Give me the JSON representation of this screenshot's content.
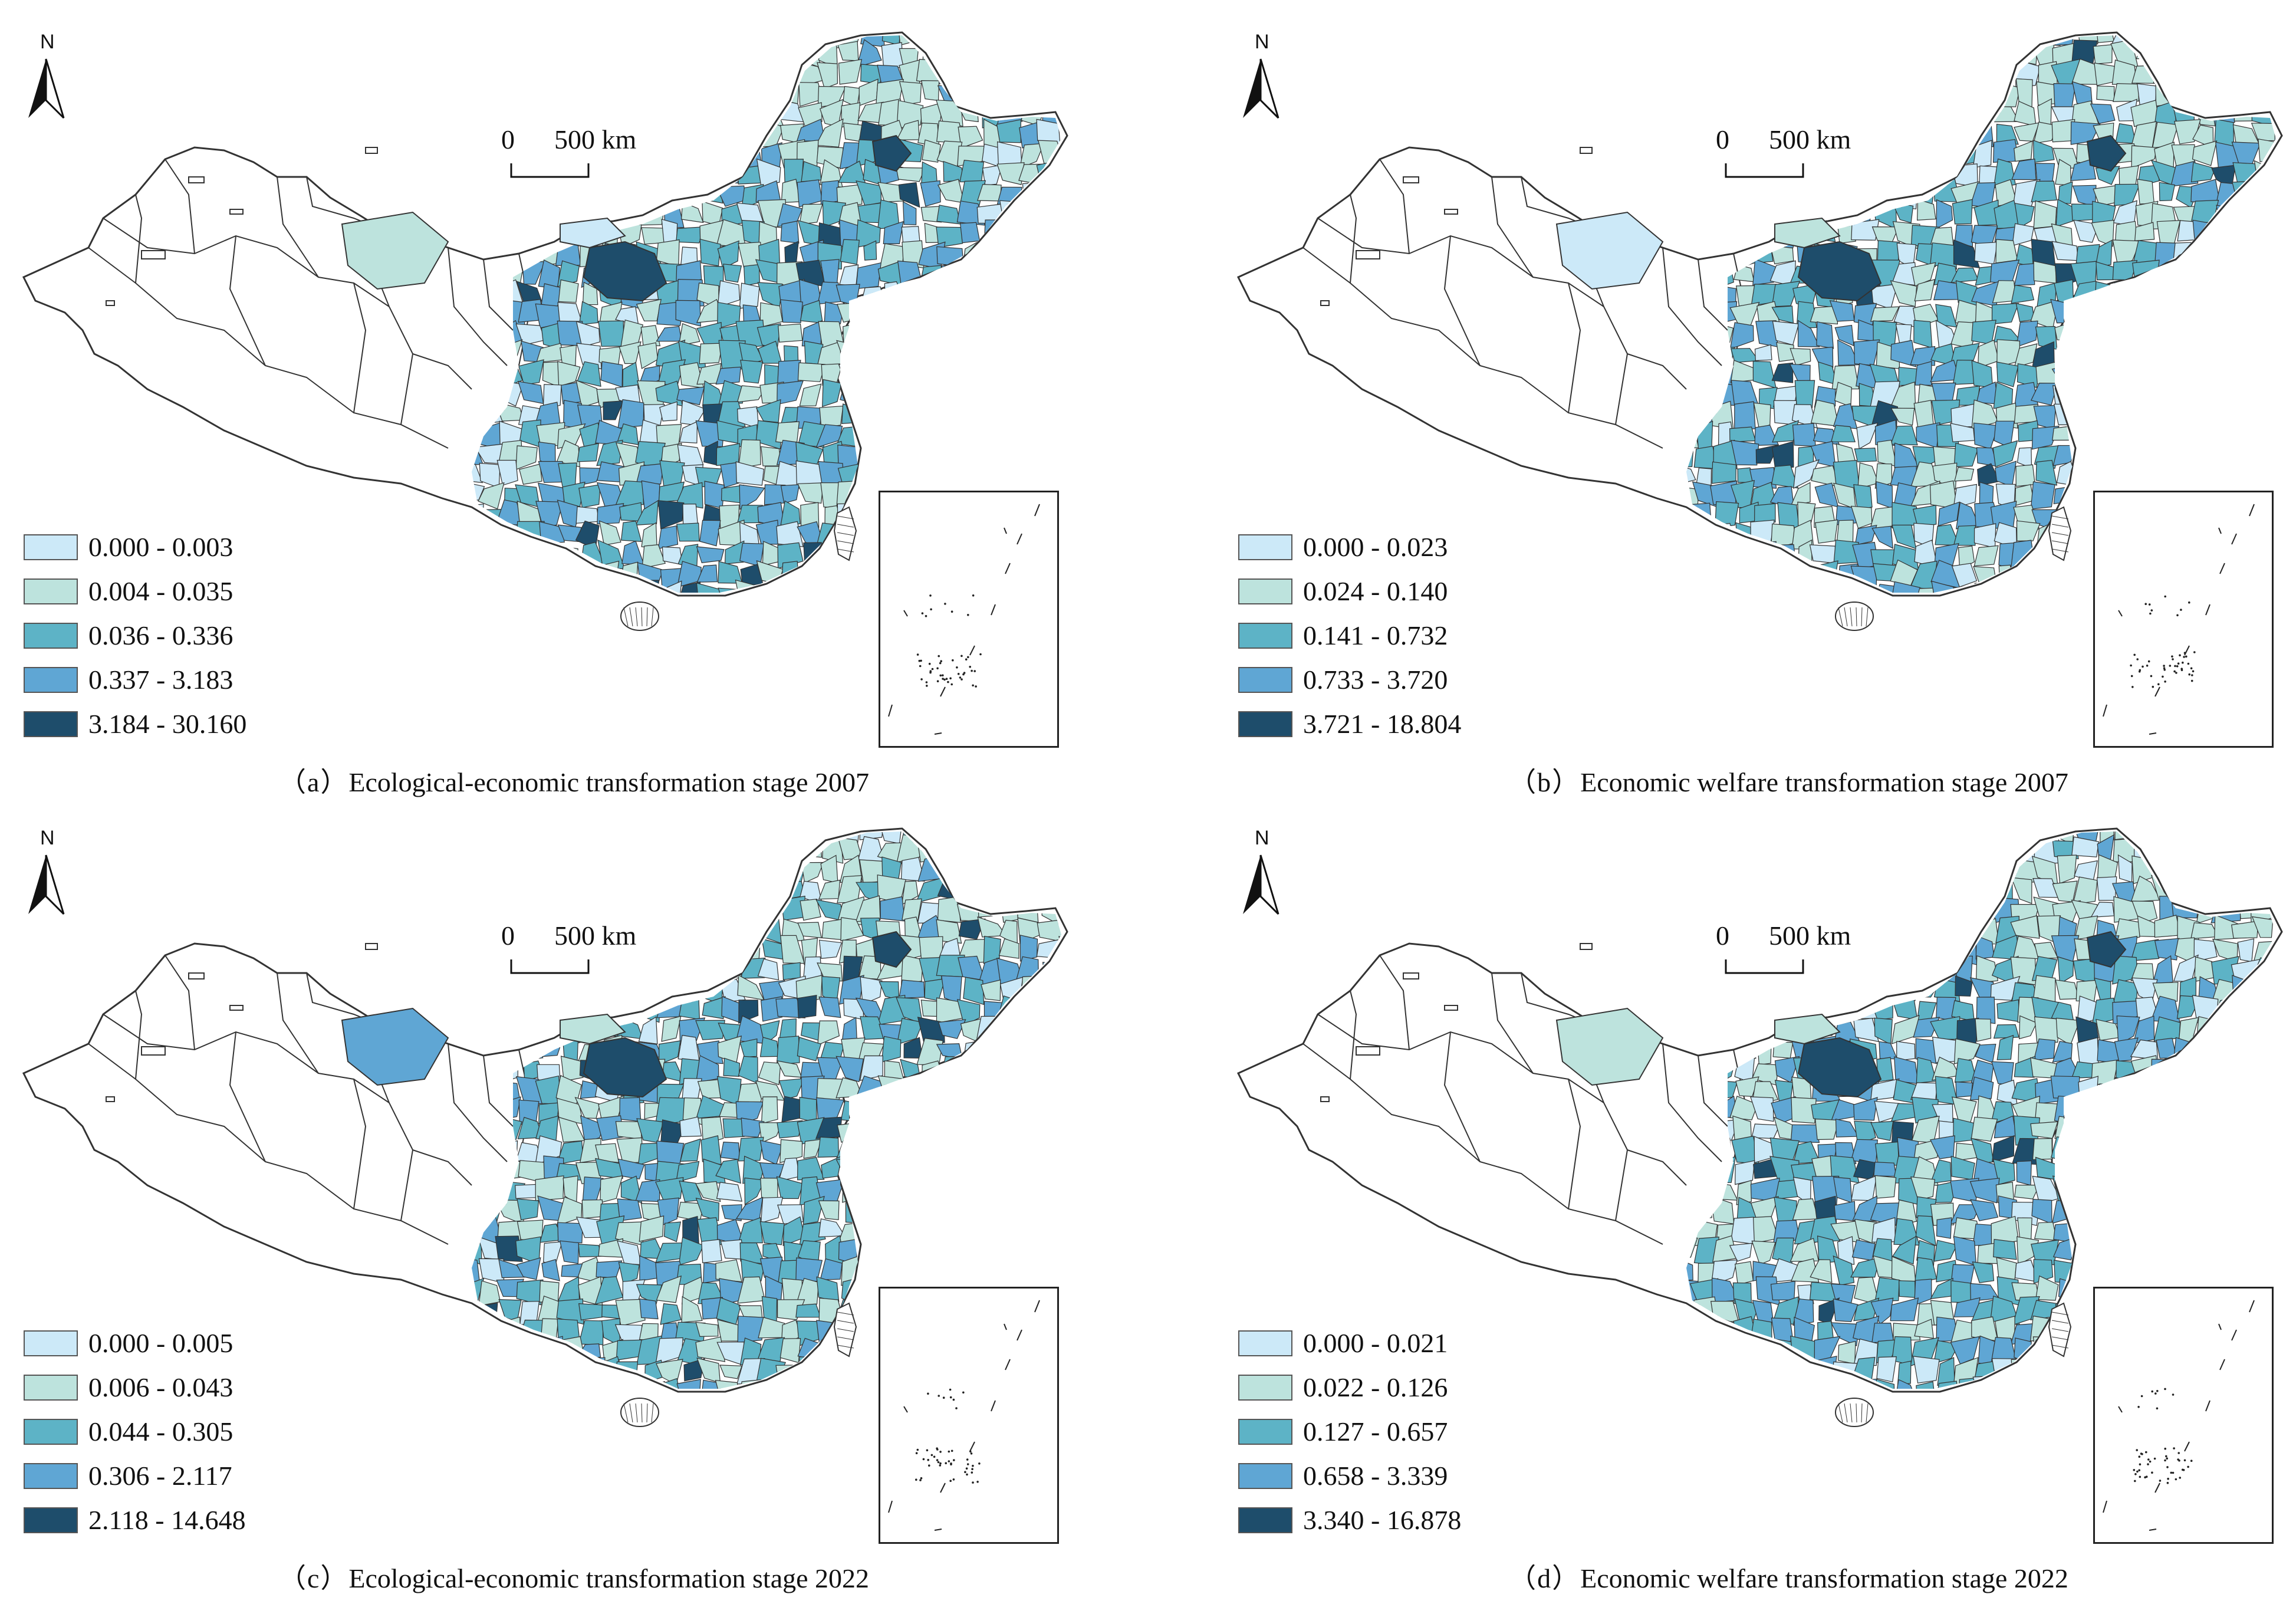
{
  "north_label": "N",
  "scale_bar": {
    "zero": "0",
    "distance": "500 km"
  },
  "colors": {
    "class1": "#cce9f8",
    "class2": "#bde3dd",
    "class3": "#5db3c6",
    "class4": "#5fa6d4",
    "class5": "#1e4d6b",
    "unclassified": "#ffffff",
    "boundary": "#333333"
  },
  "panels": [
    {
      "label": "（a）",
      "title": "Ecological-economic transformation stage 2007",
      "legend": [
        "0.000 - 0.003",
        "0.004 - 0.035",
        "0.036 - 0.336",
        "0.337 - 3.183",
        "3.184 - 30.160"
      ]
    },
    {
      "label": "（b）",
      "title": "Economic welfare transformation stage 2007",
      "legend": [
        "0.000 - 0.023",
        "0.024 - 0.140",
        "0.141 - 0.732",
        "0.733 - 3.720",
        "3.721 - 18.804"
      ]
    },
    {
      "label": "（c）",
      "title": "Ecological-economic transformation stage 2022",
      "legend": [
        "0.000 - 0.005",
        "0.006 - 0.043",
        "0.044 - 0.305",
        "0.306 - 2.117",
        "2.118 - 14.648"
      ]
    },
    {
      "label": "（d）",
      "title": "Economic welfare transformation stage 2022",
      "legend": [
        "0.000 - 0.021",
        "0.022 - 0.126",
        "0.127 - 0.657",
        "0.658 - 3.339",
        "3.340 - 16.878"
      ]
    }
  ]
}
